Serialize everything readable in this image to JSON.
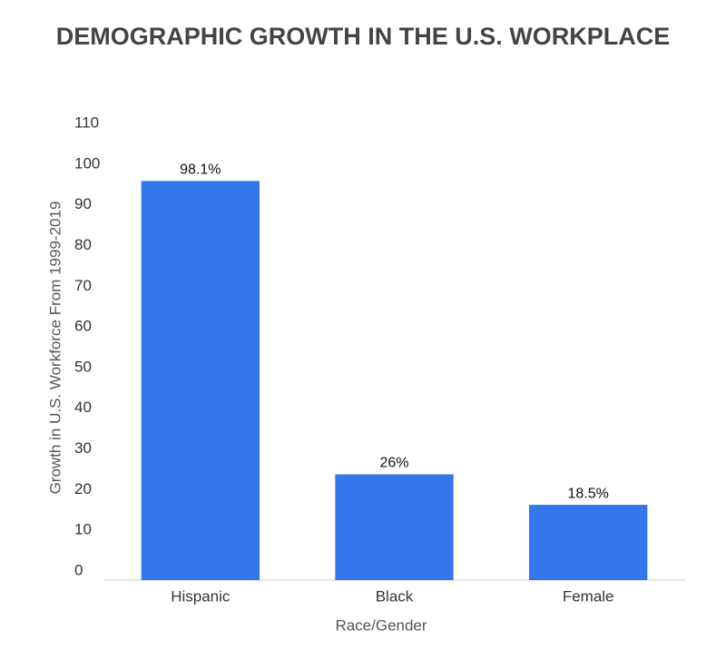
{
  "chart_data": {
    "type": "bar",
    "title": "DEMOGRAPHIC GROWTH IN THE U.S. WORKPLACE",
    "x_label": "Race/Gender",
    "y_label": "Growth in U.S. Workforce From 1999-2019",
    "categories": [
      "Hispanic",
      "Black",
      "Female"
    ],
    "values": [
      98.1,
      26,
      18.5
    ],
    "value_labels": [
      "98.1%",
      "26%",
      "18.5%"
    ],
    "color": "#3476ec",
    "ylim": [
      0,
      110
    ],
    "yticks": [
      0,
      10,
      20,
      30,
      40,
      50,
      60,
      70,
      80,
      90,
      100,
      110
    ],
    "grid": false
  }
}
